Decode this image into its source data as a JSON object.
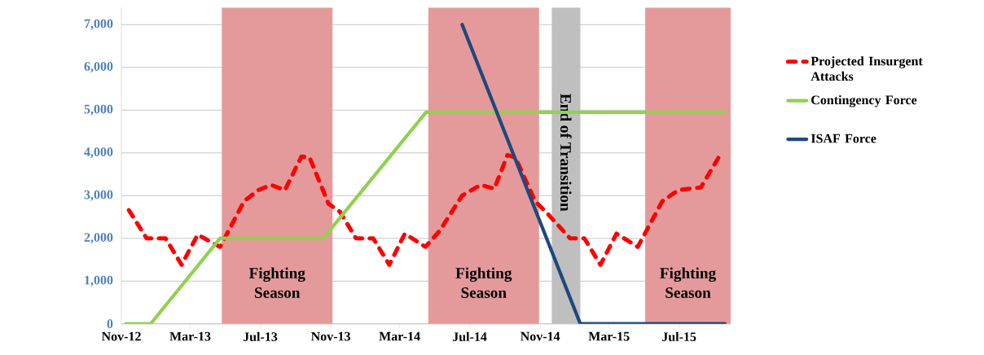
{
  "chart_data": {
    "type": "line",
    "x": [
      "2012-11-14",
      "2012-12-15",
      "2013-01-17",
      "2013-02-14",
      "2013-03-14",
      "2013-04-22",
      "2013-06-03",
      "2013-06-28",
      "2013-07-20",
      "2013-08-13",
      "2013-09-11",
      "2013-09-25",
      "2013-10-28",
      "2013-11-17",
      "2013-12-15",
      "2014-01-14",
      "2014-02-11",
      "2014-03-10",
      "2014-04-15",
      "2014-05-10",
      "2014-06-18",
      "2014-07-20",
      "2014-08-13",
      "2014-09-05",
      "2014-09-19",
      "2014-10-23",
      "2014-11-15",
      "2014-12-23",
      "2015-01-17",
      "2015-02-14",
      "2015-03-14",
      "2015-04-20",
      "2015-06-02",
      "2015-06-30",
      "2015-08-08",
      "2015-09-09"
    ],
    "series": [
      {
        "name": "Projected Insurgent Attacks",
        "color": "#ff0000",
        "line_style": "dashed",
        "values": [
          2660,
          2000,
          2000,
          1380,
          2085,
          1800,
          2870,
          3130,
          3250,
          3130,
          3915,
          3890,
          2810,
          2620,
          2000,
          2000,
          1380,
          2110,
          1800,
          2180,
          3000,
          3250,
          3160,
          3950,
          3890,
          2870,
          2560,
          2000,
          2000,
          1380,
          2110,
          1800,
          2870,
          3130,
          3190,
          3915
        ]
      },
      {
        "name": "Contingency Force",
        "color": "#92d050",
        "line_style": "solid",
        "x": [
          "2012-11-09",
          "2012-12-22",
          "2013-04-22",
          "2013-10-19",
          "2014-04-16",
          "2015-09-19"
        ],
        "values": [
          0,
          0,
          2000,
          2000,
          4950,
          4950
        ]
      },
      {
        "name": "ISAF Force",
        "color": "#1f497d",
        "line_style": "solid",
        "x": [
          "2014-06-18",
          "2015-01-10",
          "2015-09-19"
        ],
        "values": [
          7000,
          0,
          0
        ]
      }
    ],
    "xlim": [
      "2012-11-01",
      "2015-09-29"
    ],
    "xticks": [
      {
        "value": "2012-11-01",
        "label": "Nov-12"
      },
      {
        "value": "2013-03-01",
        "label": "Mar-13"
      },
      {
        "value": "2013-07-01",
        "label": "Jul-13"
      },
      {
        "value": "2013-11-01",
        "label": "Nov-13"
      },
      {
        "value": "2014-03-01",
        "label": "Mar-14"
      },
      {
        "value": "2014-07-01",
        "label": "Jul-14"
      },
      {
        "value": "2014-11-01",
        "label": "Nov-14"
      },
      {
        "value": "2015-03-01",
        "label": "Mar-15"
      },
      {
        "value": "2015-07-01",
        "label": "Jul-15"
      }
    ],
    "ylim": [
      0,
      7400
    ],
    "yticks": [
      0,
      {
        "value": 1000,
        "label": "1,000"
      },
      {
        "value": 2000,
        "label": "2,000"
      },
      {
        "value": 3000,
        "label": "3,000"
      },
      {
        "value": 4000,
        "label": "4,000"
      },
      {
        "value": 5000,
        "label": "5,000"
      },
      {
        "value": 6000,
        "label": "6,000"
      },
      {
        "value": 7000,
        "label": "7,000"
      }
    ],
    "bands": [
      {
        "axis": "x",
        "from": "2013-04-25",
        "to": "2013-11-04",
        "label": "Fighting Season",
        "color": "#e49a9a"
      },
      {
        "axis": "x",
        "from": "2014-04-20",
        "to": "2014-10-30",
        "label": "Fighting Season",
        "color": "#e49a9a"
      },
      {
        "axis": "x",
        "from": "2014-11-21",
        "to": "2015-01-10",
        "label": "End of Transition",
        "color": "#bfbfbf"
      },
      {
        "axis": "x",
        "from": "2015-05-03",
        "to": "2015-09-29",
        "label": "Fighting Season",
        "color": "#e49a9a"
      }
    ],
    "grid": "y",
    "legend": "right"
  }
}
